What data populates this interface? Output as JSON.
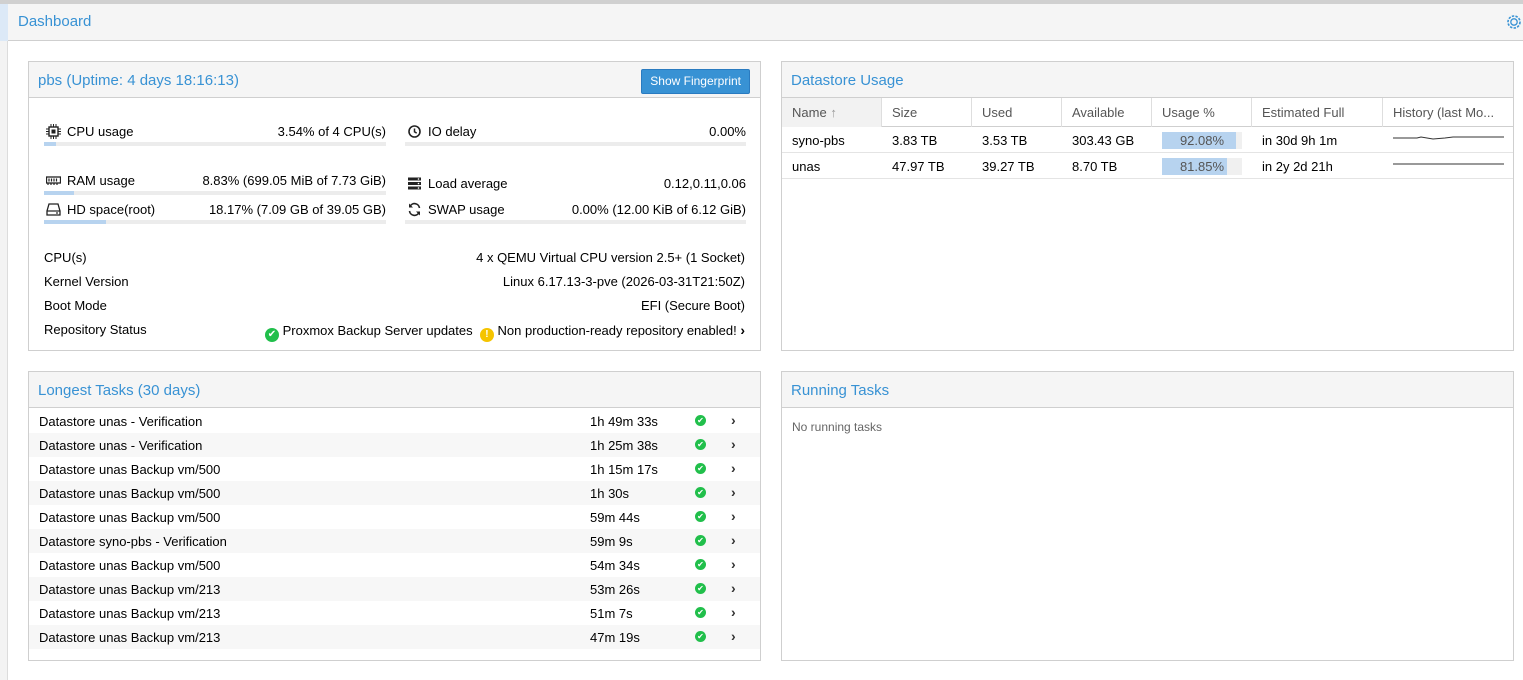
{
  "header": {
    "title": "Dashboard",
    "settings_icon": "gear-icon"
  },
  "status_panel": {
    "title": "pbs (Uptime: 4 days 18:16:13)",
    "fingerprint_button": "Show Fingerprint",
    "metrics": {
      "cpu": {
        "label": "CPU usage",
        "value": "3.54% of 4 CPU(s)",
        "fraction": 0.0354,
        "icon": "cpu-icon"
      },
      "io": {
        "label": "IO delay",
        "value": "0.00%",
        "fraction": 0.0,
        "icon": "clock-icon"
      },
      "ram": {
        "label": "RAM usage",
        "value": "8.83% (699.05 MiB of 7.73 GiB)",
        "fraction": 0.0883,
        "icon": "memory-icon"
      },
      "load": {
        "label": "Load average",
        "value": "0.12,0.11,0.06",
        "icon": "server-icon"
      },
      "hd": {
        "label": "HD space(root)",
        "value": "18.17% (7.09 GB of 39.05 GB)",
        "fraction": 0.1817,
        "icon": "hdd-icon"
      },
      "swap": {
        "label": "SWAP usage",
        "value": "0.00% (12.00 KiB of 6.12 GiB)",
        "fraction": 0.0,
        "icon": "refresh-icon"
      }
    },
    "info": {
      "cpus": {
        "label": "CPU(s)",
        "value": "4 x QEMU Virtual CPU version 2.5+ (1 Socket)"
      },
      "kernel": {
        "label": "Kernel Version",
        "value": "Linux 6.17.13-3-pve (2026-03-31T21:50Z)"
      },
      "boot": {
        "label": "Boot Mode",
        "value": "EFI (Secure Boot)"
      },
      "repo": {
        "label": "Repository Status",
        "ok_text": "Proxmox Backup Server updates",
        "warn_text": "Non production-ready repository enabled!"
      }
    }
  },
  "datastore_panel": {
    "title": "Datastore Usage",
    "columns": [
      "Name",
      "Size",
      "Used",
      "Available",
      "Usage %",
      "Estimated Full",
      "History (last Mo..."
    ],
    "sort_icon": "sort-up-icon",
    "rows": [
      {
        "name": "syno-pbs",
        "size": "3.83 TB",
        "used": "3.53 TB",
        "available": "303.43 GB",
        "usage": "92.08%",
        "usage_fraction": 0.9208,
        "estimated_full": "in 30d 9h 1m"
      },
      {
        "name": "unas",
        "size": "47.97 TB",
        "used": "39.27 TB",
        "available": "8.70 TB",
        "usage": "81.85%",
        "usage_fraction": 0.8185,
        "estimated_full": "in 2y 2d 21h"
      }
    ]
  },
  "longest_tasks_panel": {
    "title": "Longest Tasks (30 days)",
    "rows": [
      {
        "name": "Datastore unas - Verification",
        "duration": "1h 49m 33s"
      },
      {
        "name": "Datastore unas - Verification",
        "duration": "1h 25m 38s"
      },
      {
        "name": "Datastore unas Backup vm/500",
        "duration": "1h 15m 17s"
      },
      {
        "name": "Datastore unas Backup vm/500",
        "duration": "1h 30s"
      },
      {
        "name": "Datastore unas Backup vm/500",
        "duration": "59m 44s"
      },
      {
        "name": "Datastore syno-pbs - Verification",
        "duration": "59m 9s"
      },
      {
        "name": "Datastore unas Backup vm/500",
        "duration": "54m 34s"
      },
      {
        "name": "Datastore unas Backup vm/213",
        "duration": "53m 26s"
      },
      {
        "name": "Datastore unas Backup vm/213",
        "duration": "51m 7s"
      },
      {
        "name": "Datastore unas Backup vm/213",
        "duration": "47m 19s"
      }
    ]
  },
  "running_tasks_panel": {
    "title": "Running Tasks",
    "empty_text": "No running tasks"
  }
}
